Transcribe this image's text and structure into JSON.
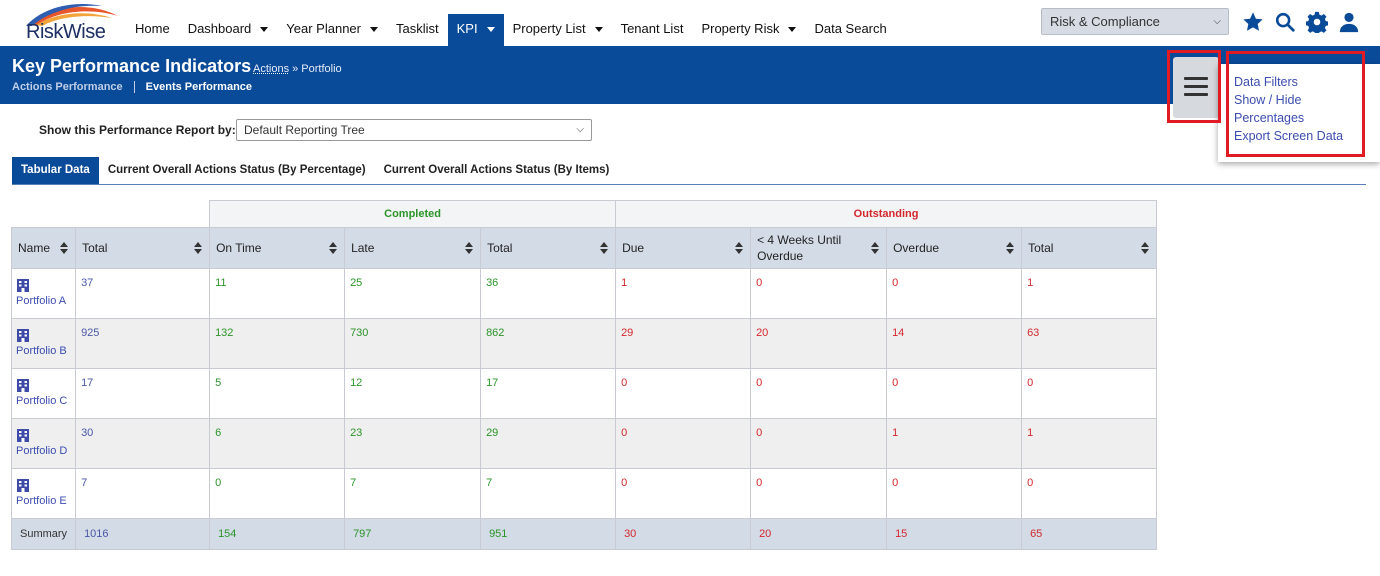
{
  "app": {
    "logo_text": "RiskWise",
    "accent": "#094a99",
    "nav": [
      {
        "label": "Home",
        "dropdown": false
      },
      {
        "label": "Dashboard",
        "dropdown": true
      },
      {
        "label": "Year Planner",
        "dropdown": true
      },
      {
        "label": "Tasklist",
        "dropdown": false
      },
      {
        "label": "KPI",
        "dropdown": true,
        "active": true
      },
      {
        "label": "Property List",
        "dropdown": true
      },
      {
        "label": "Tenant List",
        "dropdown": false
      },
      {
        "label": "Property Risk",
        "dropdown": true
      },
      {
        "label": "Data Search",
        "dropdown": false
      }
    ],
    "module_select": "Risk & Compliance",
    "icons": [
      "star-icon",
      "search-icon",
      "gear-icon",
      "user-icon"
    ]
  },
  "header": {
    "title": "Key Performance Indicators",
    "breadcrumb_link": "Actions",
    "breadcrumb_rest": " » Portfolio",
    "subnav": [
      "Actions Performance",
      "Events Performance"
    ]
  },
  "menu": {
    "items": [
      "Data Filters",
      "Show / Hide",
      "Percentages",
      "Export Screen Data"
    ]
  },
  "report": {
    "label": "Show this Performance Report by:",
    "selected": "Default Reporting Tree"
  },
  "tabs": [
    "Tabular Data",
    "Current Overall Actions Status (By Percentage)",
    "Current Overall Actions Status (By Items)"
  ],
  "table": {
    "group_completed": "Completed",
    "group_outstanding": "Outstanding",
    "headers": [
      "Name",
      "Total",
      "On Time",
      "Late",
      "Total",
      "Due",
      "< 4 Weeks Until Overdue",
      "Overdue",
      "Total"
    ],
    "rows": [
      {
        "name": "Portfolio A",
        "values": [
          "37",
          "11",
          "25",
          "36",
          "1",
          "0",
          "0",
          "1"
        ]
      },
      {
        "name": "Portfolio B",
        "values": [
          "925",
          "132",
          "730",
          "862",
          "29",
          "20",
          "14",
          "63"
        ]
      },
      {
        "name": "Portfolio C",
        "values": [
          "17",
          "5",
          "12",
          "17",
          "0",
          "0",
          "0",
          "0"
        ]
      },
      {
        "name": "Portfolio D",
        "values": [
          "30",
          "6",
          "23",
          "29",
          "0",
          "0",
          "1",
          "1"
        ]
      },
      {
        "name": "Portfolio E",
        "values": [
          "7",
          "0",
          "7",
          "7",
          "0",
          "0",
          "0",
          "0"
        ]
      }
    ],
    "summary": {
      "label": "Summary",
      "values": [
        "1016",
        "154",
        "797",
        "951",
        "30",
        "20",
        "15",
        "65"
      ]
    }
  }
}
